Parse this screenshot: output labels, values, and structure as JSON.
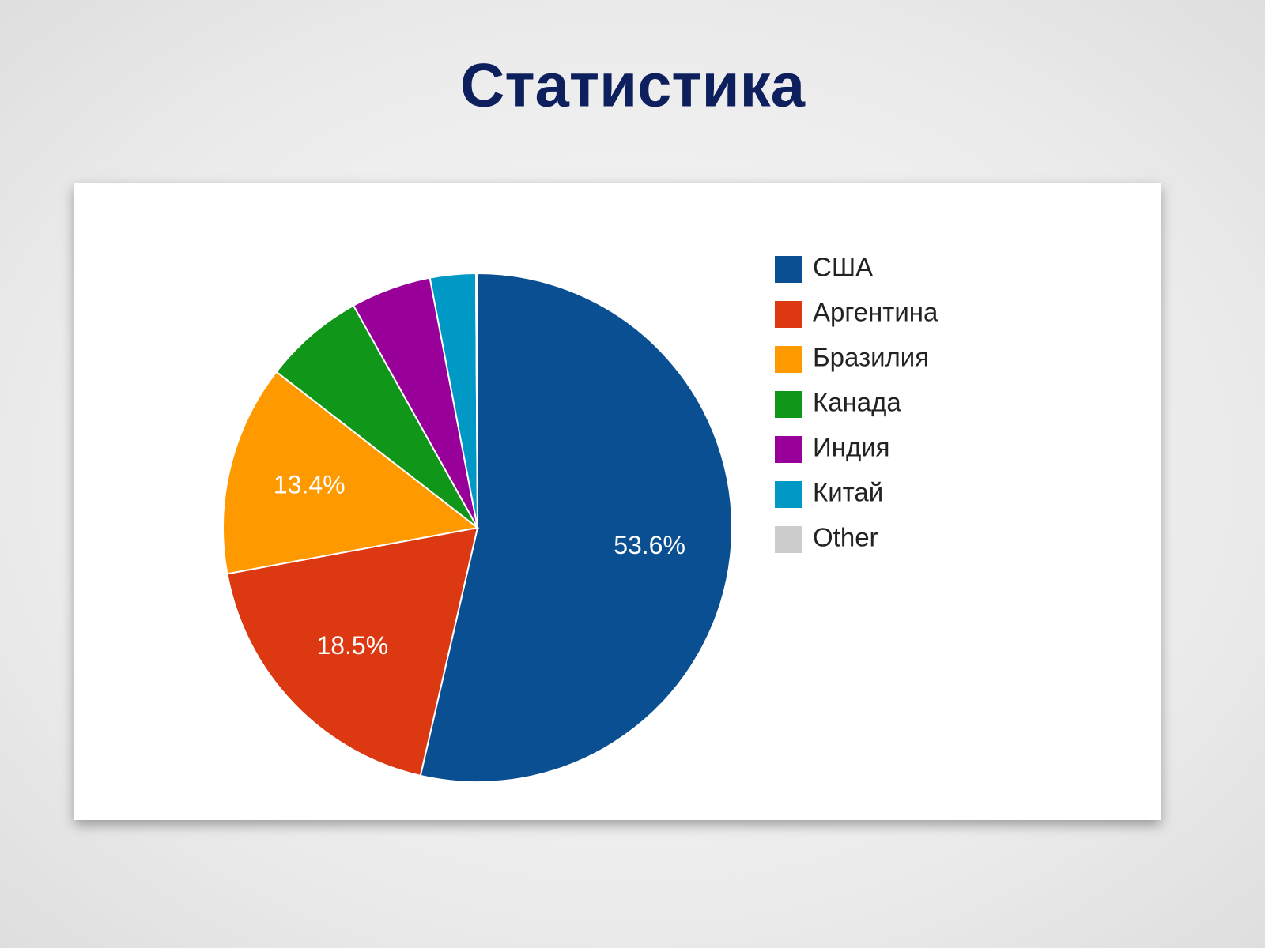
{
  "chart_data": {
    "type": "pie",
    "title": "Статистика",
    "categories": [
      "США",
      "Аргентина",
      "Бразилия",
      "Канада",
      "Индия",
      "Китай",
      "Other"
    ],
    "values": [
      53.6,
      18.5,
      13.4,
      6.4,
      5.1,
      2.9,
      0.1
    ],
    "value_labels": [
      "53.6%",
      "18.5%",
      "13.4%",
      null,
      null,
      null,
      null
    ],
    "colors": [
      "#0b4f93",
      "#dc3912",
      "#ff9900",
      "#109618",
      "#990099",
      "#0099c6",
      "#cccccc"
    ],
    "legend": "right"
  }
}
